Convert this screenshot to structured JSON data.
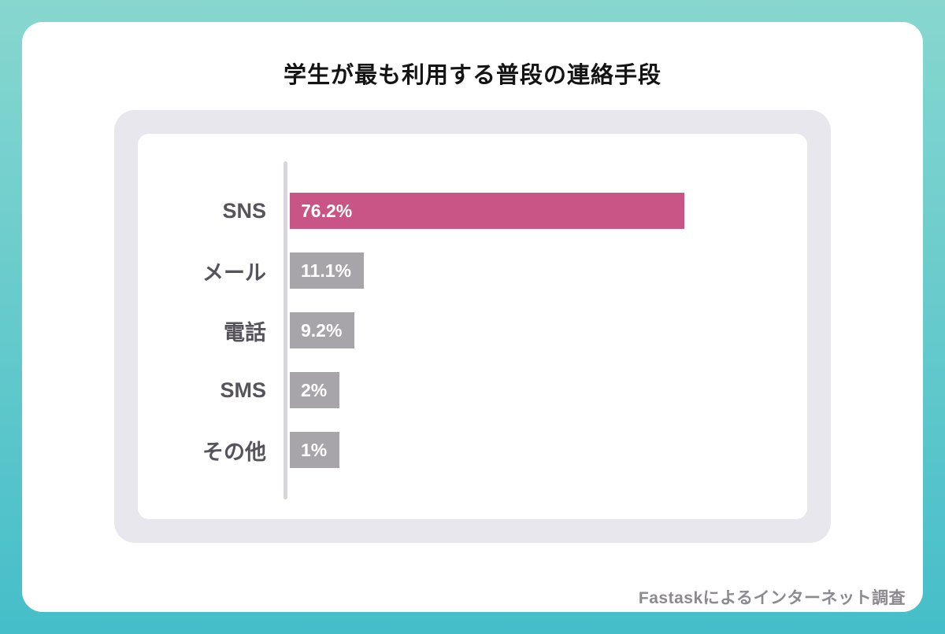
{
  "title": "学生が最も利用する普段の連絡手段",
  "footer": "Fastaskによるインターネット調査",
  "colors": {
    "accent": "#c85585",
    "bar_gray": "#a7a5aa",
    "panel_bg": "#e9e7ee",
    "frame_top": "#87d7cf",
    "frame_bottom": "#45bec9",
    "axis": "#d8d6dc",
    "label_text": "#56535c",
    "footer_text": "#8c8a8e"
  },
  "chart_data": {
    "type": "bar",
    "orientation": "horizontal",
    "title": "学生が最も利用する普段の連絡手段",
    "categories": [
      "SNS",
      "メール",
      "電話",
      "SMS",
      "その他"
    ],
    "values": [
      76.2,
      11.1,
      9.2,
      2,
      1
    ],
    "value_labels": [
      "76.2%",
      "11.1%",
      "9.2%",
      "2%",
      "1%"
    ],
    "xlim": [
      0,
      100
    ],
    "highlight_index": 0,
    "legend": "none",
    "grid": "off",
    "source_note": "Fastaskによるインターネット調査"
  }
}
